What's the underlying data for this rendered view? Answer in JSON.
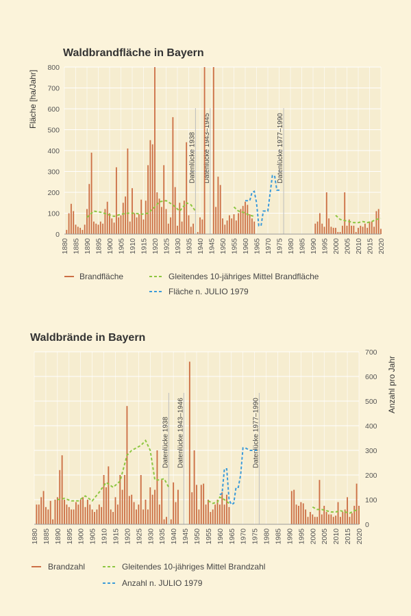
{
  "chart_data": [
    {
      "type": "bar",
      "title": "Waldbrandfläche in Bayern",
      "ylabel": "Fläche [ha/Jahr]",
      "xlabel": "",
      "xlim": [
        1880,
        2020
      ],
      "ylim": [
        0,
        800
      ],
      "yticks": [
        0,
        100,
        200,
        300,
        400,
        500,
        600,
        700,
        800
      ],
      "xticks": [
        1880,
        1885,
        1890,
        1895,
        1900,
        1905,
        1910,
        1915,
        1920,
        1925,
        1930,
        1935,
        1940,
        1945,
        1950,
        1955,
        1960,
        1965,
        1970,
        1975,
        1980,
        1985,
        1990,
        1995,
        2000,
        2005,
        2010,
        2015,
        2020
      ],
      "grid": true,
      "legend_position": "bottom",
      "colors": {
        "bars": "#cc6f45",
        "moving_average": "#8cc63f",
        "julio": "#3a9ad9",
        "grid": "#ffffff",
        "gap_line": "#bdbdbd"
      },
      "gaps": [
        {
          "year": 1938,
          "label": "Datenlücke 1938"
        },
        {
          "year": 1944.5,
          "label": "Datenlücke 1943–1945"
        },
        {
          "year": 1977,
          "label": "Datenlücke 1977–1990"
        }
      ],
      "series": [
        {
          "name": "Brandfläche",
          "style": "bar",
          "x": [
            1881,
            1882,
            1883,
            1884,
            1885,
            1886,
            1887,
            1888,
            1889,
            1890,
            1891,
            1892,
            1893,
            1894,
            1895,
            1896,
            1897,
            1898,
            1899,
            1900,
            1901,
            1902,
            1903,
            1904,
            1905,
            1906,
            1907,
            1908,
            1909,
            1910,
            1911,
            1912,
            1913,
            1914,
            1915,
            1916,
            1917,
            1918,
            1919,
            1920,
            1921,
            1922,
            1923,
            1924,
            1925,
            1926,
            1927,
            1928,
            1929,
            1930,
            1931,
            1932,
            1933,
            1934,
            1935,
            1936,
            1937,
            1939,
            1940,
            1941,
            1942,
            1946,
            1947,
            1948,
            1949,
            1950,
            1951,
            1952,
            1953,
            1954,
            1955,
            1956,
            1957,
            1958,
            1959,
            1960,
            1961,
            1962,
            1963,
            1964,
            1991,
            1992,
            1993,
            1994,
            1995,
            1996,
            1997,
            1998,
            1999,
            2000,
            2001,
            2002,
            2003,
            2004,
            2005,
            2006,
            2007,
            2008,
            2009,
            2010,
            2011,
            2012,
            2013,
            2014,
            2015,
            2016,
            2017,
            2018,
            2019,
            2020
          ],
          "values": [
            20,
            100,
            145,
            110,
            45,
            35,
            30,
            20,
            45,
            120,
            240,
            390,
            60,
            50,
            45,
            60,
            50,
            120,
            155,
            100,
            75,
            55,
            320,
            80,
            90,
            150,
            180,
            410,
            60,
            220,
            100,
            80,
            95,
            165,
            70,
            160,
            330,
            450,
            430,
            800,
            200,
            170,
            130,
            330,
            120,
            50,
            80,
            560,
            225,
            40,
            150,
            60,
            160,
            440,
            90,
            35,
            50,
            10,
            80,
            70,
            800,
            800,
            130,
            275,
            235,
            75,
            45,
            65,
            90,
            75,
            95,
            65,
            100,
            120,
            135,
            155,
            140,
            95,
            75,
            60,
            50,
            60,
            100,
            50,
            35,
            200,
            75,
            35,
            30,
            30,
            10,
            10,
            40,
            200,
            40,
            70,
            40,
            40,
            10,
            30,
            40,
            35,
            50,
            30,
            60,
            60,
            35,
            110,
            120,
            25
          ]
        },
        {
          "name": "Gleitendes 10-jähriges Mittel Brandfläche",
          "style": "dashed-line",
          "segments": [
            {
              "x": [
                1890,
                1893,
                1896,
                1899,
                1902,
                1905,
                1908,
                1911,
                1914,
                1917,
                1920,
                1922,
                1925,
                1928,
                1931,
                1934,
                1936,
                1938
              ],
              "values": [
                80,
                110,
                105,
                95,
                85,
                95,
                100,
                100,
                95,
                100,
                130,
                155,
                160,
                140,
                110,
                150,
                140,
                110
              ]
            },
            {
              "x": [
                1955,
                1957,
                1959,
                1960,
                1962,
                1964
              ],
              "values": [
                130,
                110,
                105,
                100,
                90,
                85
              ]
            },
            {
              "x": [
                2000,
                2002,
                2004,
                2006,
                2008,
                2010,
                2012,
                2014,
                2016,
                2018,
                2020
              ],
              "values": [
                90,
                70,
                65,
                60,
                55,
                55,
                60,
                55,
                60,
                70,
                75
              ]
            }
          ]
        },
        {
          "name": "Fläche n. JULIO 1979",
          "style": "dashed-line",
          "segments": [
            {
              "x": [
                1960,
                1962,
                1963,
                1964,
                1965,
                1966,
                1967,
                1968,
                1970,
                1972,
                1973,
                1974,
                1975,
                1976
              ],
              "values": [
                160,
                160,
                200,
                205,
                150,
                40,
                40,
                110,
                110,
                280,
                280,
                210,
                210,
                210
              ]
            }
          ]
        }
      ]
    },
    {
      "type": "bar",
      "title": "Waldbrände in Bayern",
      "ylabel": "Anzahl pro Jahr",
      "xlabel": "",
      "xlim": [
        1880,
        2020
      ],
      "ylim": [
        0,
        700
      ],
      "yticks": [
        0,
        100,
        200,
        300,
        400,
        500,
        600,
        700
      ],
      "xticks": [
        1880,
        1885,
        1890,
        1895,
        1900,
        1905,
        1910,
        1915,
        1920,
        1925,
        1930,
        1935,
        1940,
        1945,
        1950,
        1955,
        1960,
        1965,
        1970,
        1975,
        1980,
        1985,
        1990,
        1995,
        2000,
        2005,
        2010,
        2015,
        2020
      ],
      "grid": true,
      "legend_position": "bottom",
      "colors": {
        "bars": "#cc6f45",
        "moving_average": "#8cc63f",
        "julio": "#3a9ad9",
        "grid": "#ffffff",
        "gap_line": "#bdbdbd"
      },
      "gaps": [
        {
          "year": 1938,
          "label": "Datenlücke 1938"
        },
        {
          "year": 1944.5,
          "label": "Datenlücke 1943–1946"
        },
        {
          "year": 1977,
          "label": "Datenlücke 1977–1990"
        }
      ],
      "series": [
        {
          "name": "Brandzahl",
          "style": "bar",
          "x": [
            1881,
            1882,
            1883,
            1884,
            1885,
            1886,
            1887,
            1888,
            1889,
            1890,
            1891,
            1892,
            1893,
            1894,
            1895,
            1896,
            1897,
            1898,
            1899,
            1900,
            1901,
            1902,
            1903,
            1904,
            1905,
            1906,
            1907,
            1908,
            1909,
            1910,
            1911,
            1912,
            1913,
            1914,
            1915,
            1916,
            1917,
            1918,
            1919,
            1920,
            1921,
            1922,
            1923,
            1924,
            1925,
            1926,
            1927,
            1928,
            1929,
            1930,
            1931,
            1932,
            1933,
            1934,
            1935,
            1936,
            1937,
            1939,
            1940,
            1941,
            1942,
            1947,
            1948,
            1949,
            1950,
            1951,
            1952,
            1953,
            1954,
            1955,
            1956,
            1957,
            1958,
            1959,
            1960,
            1961,
            1962,
            1963,
            1964,
            1991,
            1992,
            1993,
            1994,
            1995,
            1996,
            1997,
            1998,
            1999,
            2000,
            2001,
            2002,
            2003,
            2004,
            2005,
            2006,
            2007,
            2008,
            2009,
            2010,
            2011,
            2012,
            2013,
            2014,
            2015,
            2016,
            2017,
            2018,
            2019,
            2020
          ],
          "values": [
            80,
            80,
            110,
            135,
            70,
            60,
            95,
            20,
            100,
            110,
            220,
            280,
            100,
            80,
            70,
            60,
            60,
            90,
            80,
            100,
            110,
            70,
            100,
            80,
            60,
            50,
            60,
            80,
            70,
            200,
            150,
            235,
            60,
            50,
            110,
            80,
            200,
            140,
            200,
            480,
            115,
            120,
            90,
            60,
            80,
            200,
            60,
            100,
            60,
            150,
            120,
            140,
            300,
            80,
            180,
            20,
            30,
            20,
            170,
            90,
            140,
            660,
            130,
            300,
            160,
            60,
            160,
            165,
            80,
            100,
            50,
            60,
            80,
            100,
            80,
            130,
            80,
            120,
            70,
            135,
            140,
            80,
            75,
            90,
            85,
            60,
            30,
            50,
            40,
            30,
            30,
            180,
            40,
            75,
            50,
            40,
            40,
            30,
            35,
            90,
            30,
            50,
            60,
            110,
            30,
            45,
            75,
            165,
            75
          ]
        },
        {
          "name": "Gleitendes 10-jähriges Mittel Brandzahl",
          "style": "dashed-line",
          "segments": [
            {
              "x": [
                1890,
                1893,
                1896,
                1899,
                1902,
                1905,
                1908,
                1911,
                1914,
                1917,
                1920,
                1922,
                1924,
                1926,
                1928,
                1930,
                1932,
                1934,
                1936,
                1938
              ],
              "values": [
                100,
                105,
                95,
                95,
                115,
                95,
                130,
                170,
                150,
                175,
                280,
                300,
                310,
                320,
                340,
                300,
                180,
                180,
                185,
                150
              ]
            },
            {
              "x": [
                1955,
                1957,
                1959,
                1960,
                1962,
                1964
              ],
              "values": [
                95,
                85,
                90,
                110,
                100,
                85
              ]
            },
            {
              "x": [
                2000,
                2002,
                2004,
                2006,
                2008,
                2010,
                2012,
                2014,
                2016,
                2018,
                2020
              ],
              "values": [
                70,
                60,
                60,
                55,
                50,
                50,
                55,
                50,
                45,
                55,
                60
              ]
            }
          ]
        },
        {
          "name": "Anzahl n. JULIO 1979",
          "style": "dashed-line",
          "segments": [
            {
              "x": [
                1960,
                1961,
                1962,
                1963,
                1964,
                1965,
                1966,
                1967,
                1968,
                1969,
                1970,
                1971,
                1972,
                1973,
                1974,
                1975,
                1976
              ],
              "values": [
                120,
                125,
                225,
                225,
                100,
                80,
                85,
                150,
                150,
                200,
                310,
                310,
                305,
                300,
                300,
                300,
                300
              ]
            }
          ]
        }
      ]
    }
  ]
}
